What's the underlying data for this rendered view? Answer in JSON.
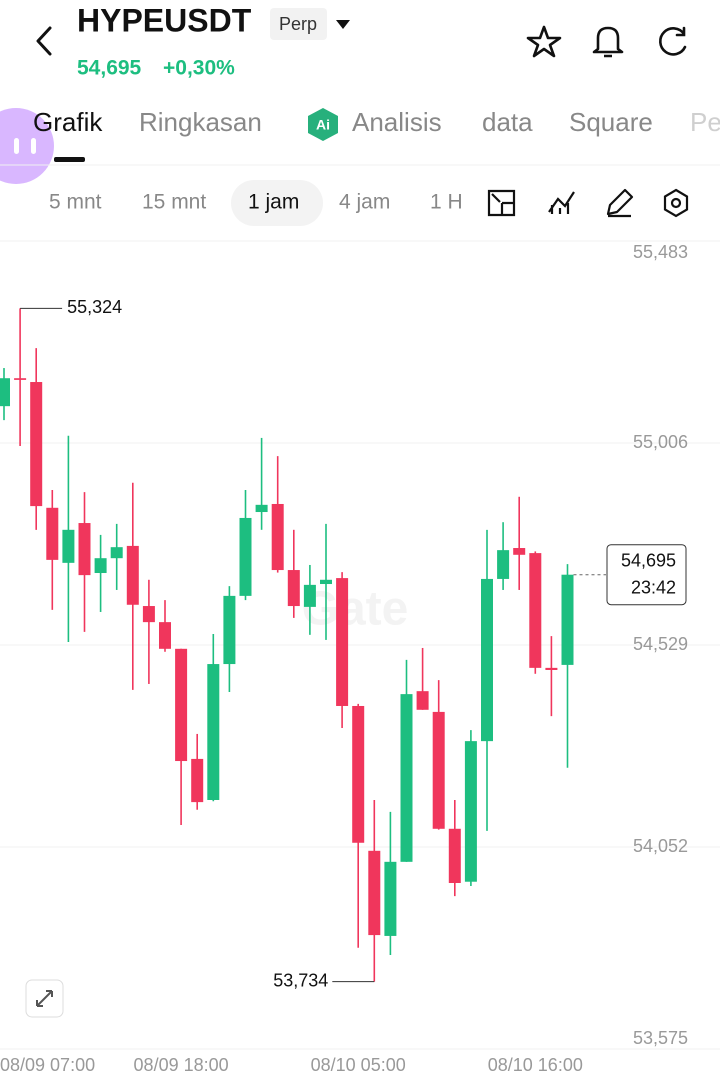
{
  "header": {
    "title": "HYPEUSDT",
    "badge": "Perp",
    "price": "54,695",
    "change": "+0,30%"
  },
  "tabs": [
    "Grafik",
    "Ringkasan",
    "Analisis",
    "data",
    "Square",
    "Pe"
  ],
  "intervals": [
    "5 mnt",
    "15 mnt",
    "1 jam",
    "4 jam",
    "1 H"
  ],
  "chart_data": {
    "type": "candlestick",
    "categories": [
      "08/09 07:00",
      null,
      null,
      null,
      null,
      null,
      null,
      null,
      null,
      null,
      null,
      "08/09 18:00",
      null,
      null,
      null,
      null,
      null,
      null,
      null,
      null,
      null,
      null,
      "08/10 05:00",
      null,
      null,
      null,
      null,
      null,
      null,
      null,
      null,
      null,
      null,
      "08/10 16:00",
      null,
      null
    ],
    "open": [
      55093,
      55159,
      55150,
      54853,
      54723,
      54817,
      54699,
      54734,
      54763,
      54621,
      54583,
      54520,
      54260,
      54163,
      54484,
      54645,
      54843,
      54862,
      54706,
      54619,
      54673,
      54687,
      54385,
      54043,
      53842,
      54017,
      54420,
      54371,
      54095,
      53970,
      54302,
      54685,
      54758,
      54746,
      54475,
      54482
    ],
    "high": [
      55183,
      55324,
      55230,
      54895,
      55023,
      54890,
      54789,
      54815,
      54912,
      54683,
      54635,
      54520,
      54319,
      54555,
      54668,
      54895,
      55018,
      54975,
      54801,
      54718,
      54815,
      54701,
      54390,
      54163,
      54135,
      54494,
      54522,
      54446,
      54163,
      54328,
      54801,
      54819,
      54879,
      54750,
      54550,
      54720
    ],
    "low": [
      55060,
      54999,
      54801,
      54612,
      54536,
      54560,
      54607,
      54659,
      54423,
      54437,
      54513,
      54104,
      54140,
      54160,
      54418,
      54635,
      54801,
      54700,
      54593,
      54553,
      54541,
      54333,
      53814,
      53734,
      53797,
      54017,
      54376,
      54093,
      53936,
      53960,
      54090,
      54659,
      54659,
      54461,
      54361,
      54239
    ],
    "close": [
      55159,
      55155,
      54857,
      54730,
      54801,
      54694,
      54734,
      54760,
      54624,
      54583,
      54520,
      54255,
      54158,
      54484,
      54645,
      54829,
      54860,
      54706,
      54621,
      54671,
      54683,
      54385,
      54062,
      53844,
      54017,
      54413,
      54376,
      54095,
      53967,
      54302,
      54685,
      54753,
      54742,
      54475,
      54470,
      54695
    ],
    "up_color": "#1dbe80",
    "down_color": "#f0365c",
    "ylim": [
      53575,
      55483
    ],
    "yticks": [
      {
        "value": 55483,
        "label": "55,483"
      },
      {
        "value": 55006,
        "label": "55,006"
      },
      {
        "value": 54529,
        "label": "54,529"
      },
      {
        "value": 54052,
        "label": "54,052"
      },
      {
        "value": 53575,
        "label": "53,575"
      }
    ],
    "grid": true,
    "annotations": {
      "high": "55,324",
      "low": "53,734"
    },
    "last_price": "54,695",
    "countdown": "23:42",
    "watermark": "Gate"
  }
}
